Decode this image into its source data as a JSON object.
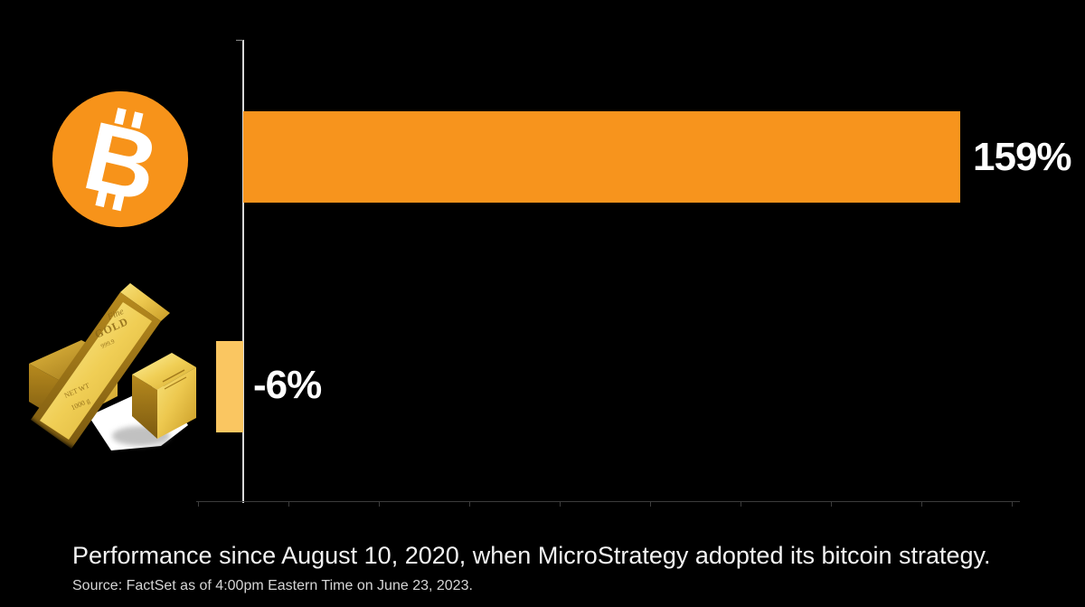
{
  "chart_data": {
    "type": "bar",
    "orientation": "horizontal",
    "title": "",
    "categories": [
      "Bitcoin",
      "Gold"
    ],
    "values": [
      159,
      -6
    ],
    "value_labels": [
      "159%",
      "-6%"
    ],
    "unit": "%",
    "xlim": [
      -10,
      172
    ],
    "axis": {
      "gridlines": false,
      "tick_count": 10,
      "tick_labels_visible": false
    },
    "legend": "none (category icons: bitcoin logo, gold bars photo)",
    "caption": "Performance since August 10, 2020, when MicroStrategy adopted its bitcoin strategy.",
    "source": "Source: FactSet as of 4:00pm Eastern Time on June 23, 2023."
  },
  "colors": {
    "background": "#000000",
    "bitcoin_bar": "#F7941D",
    "gold_bar": "#FAC661",
    "bitcoin_logo": "#F7931A",
    "axis_line": "#D9D9D9",
    "baseline": "#3C3C3C",
    "label_text": "#FFFFFF",
    "caption_text": "#F2F2F2",
    "source_text": "#D6D6D6"
  },
  "icons": {
    "bitcoin_glyph": "B"
  },
  "gold_image": {
    "engraving": [
      "Fine",
      "GOLD",
      "999.9",
      "NET WT",
      "1000 g"
    ]
  }
}
